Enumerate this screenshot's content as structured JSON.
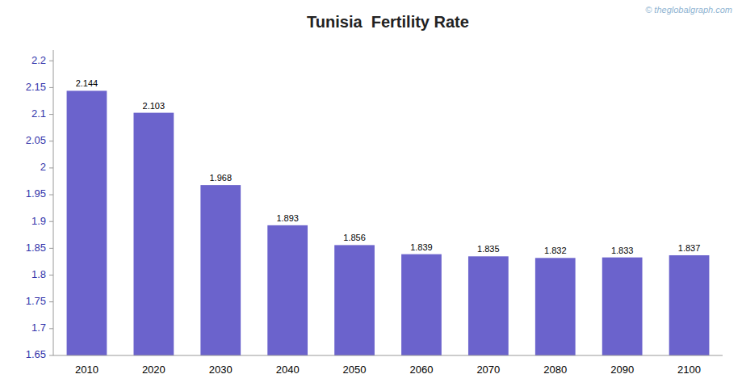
{
  "chart_data": {
    "type": "bar",
    "title": "Tunisia  Fertility Rate",
    "categories": [
      "2010",
      "2020",
      "2030",
      "2040",
      "2050",
      "2060",
      "2070",
      "2080",
      "2090",
      "2100"
    ],
    "values": [
      2.144,
      2.103,
      1.968,
      1.893,
      1.856,
      1.839,
      1.835,
      1.832,
      1.833,
      1.837
    ],
    "color": "#6B63CC",
    "ylim": [
      1.65,
      2.22
    ],
    "yticks": [
      1.65,
      1.7,
      1.75,
      1.8,
      1.85,
      1.9,
      1.95,
      2,
      2.05,
      2.1,
      2.15,
      2.2
    ],
    "grid": false,
    "data_labels": true,
    "annotations": [
      "© theglobalgraph.com"
    ]
  }
}
